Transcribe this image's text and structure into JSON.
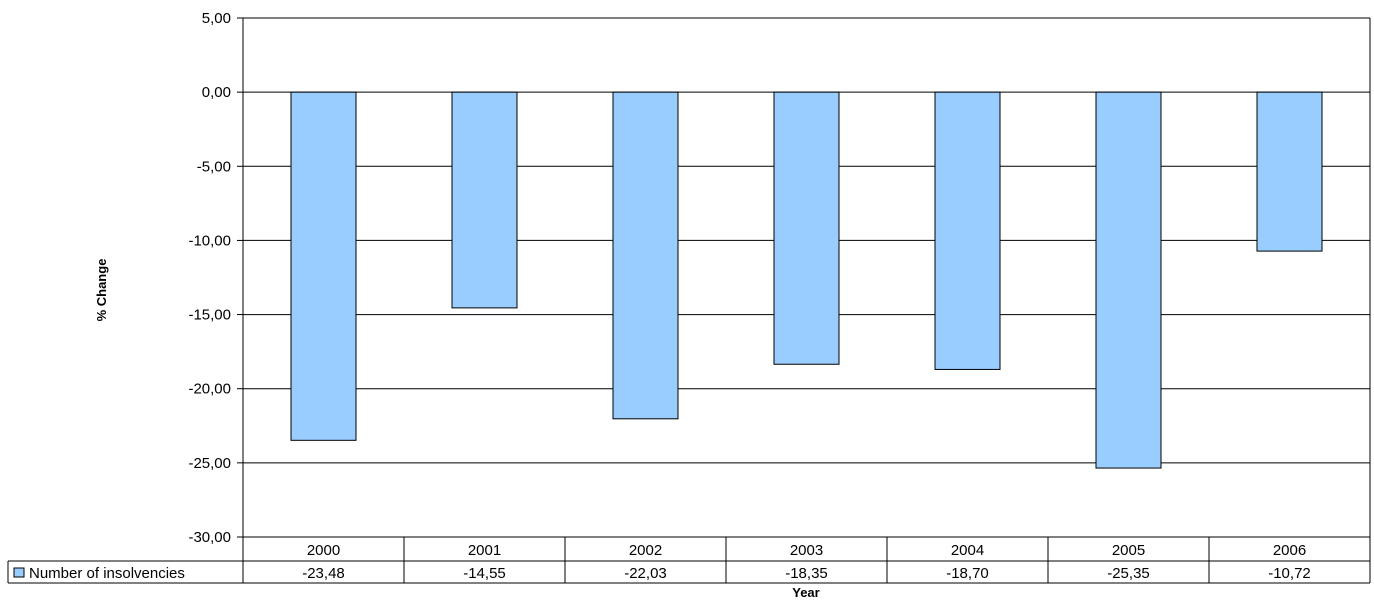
{
  "chart_data": {
    "type": "bar",
    "title": "",
    "xlabel": "Year",
    "ylabel": "% Change",
    "categories": [
      "2000",
      "2001",
      "2002",
      "2003",
      "2004",
      "2005",
      "2006"
    ],
    "series": [
      {
        "name": "Number of insolvencies",
        "values": [
          -23.48,
          -14.55,
          -22.03,
          -18.35,
          -18.7,
          -25.35,
          -10.72
        ],
        "value_labels": [
          "-23,48",
          "-14,55",
          "-22,03",
          "-18,35",
          "-18,70",
          "-25,35",
          "-10,72"
        ],
        "color": "#99ccff"
      }
    ],
    "ylim": [
      -30,
      5
    ],
    "y_ticks": [
      5,
      0,
      -5,
      -10,
      -15,
      -20,
      -25,
      -30
    ],
    "y_tick_labels": [
      "5,00",
      "0,00",
      "-5,00",
      "-10,00",
      "-15,00",
      "-20,00",
      "-25,00",
      "-30,00"
    ],
    "grid": true,
    "legend": "data-table-row",
    "data_table": true
  }
}
